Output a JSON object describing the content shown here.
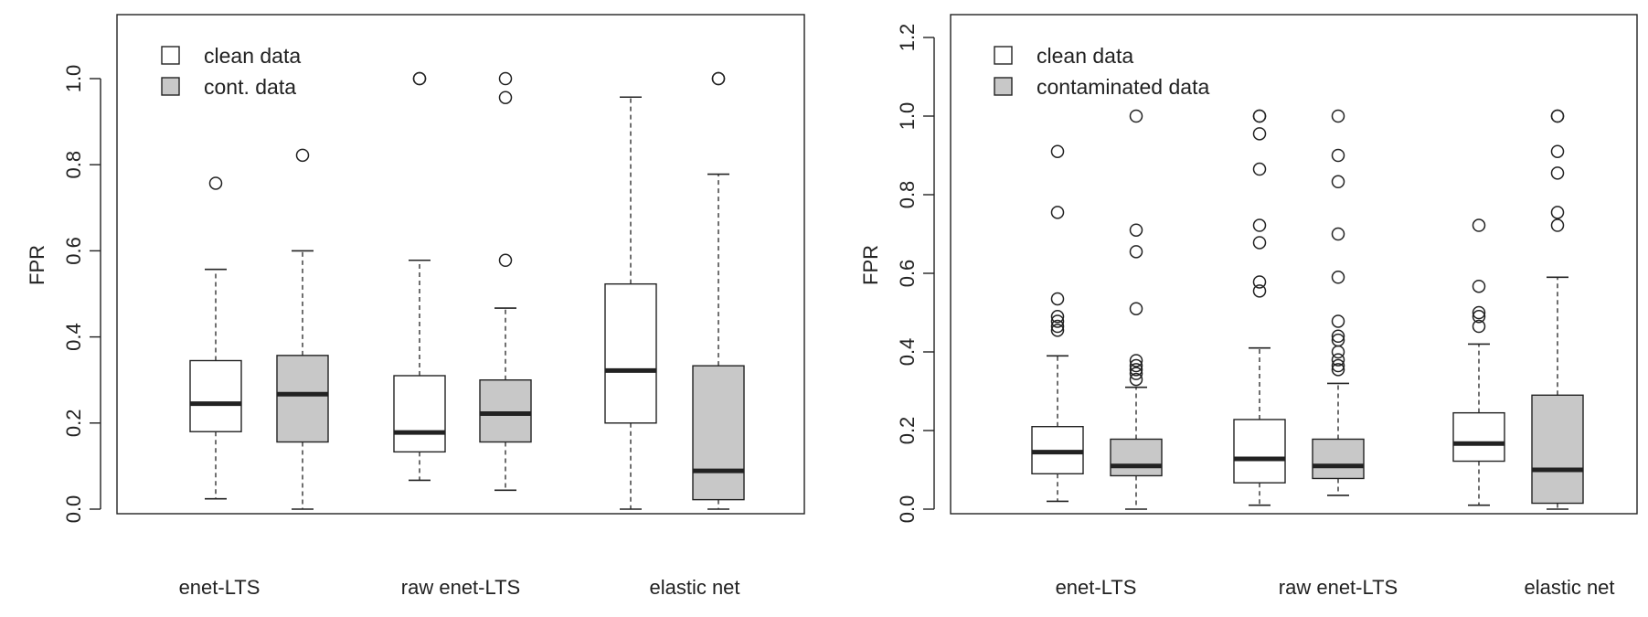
{
  "colors": {
    "clean": "#ffffff",
    "contaminated": "#c8c8c8",
    "ink": "#222222"
  },
  "chart_data": [
    {
      "type": "boxplot",
      "title": "",
      "xlabel": "",
      "ylabel": "FPR",
      "ylim": [
        0,
        1.1
      ],
      "yticks": [
        "0.0",
        "0.2",
        "0.4",
        "0.6",
        "0.8",
        "1.0"
      ],
      "categories": [
        "enet-LTS",
        "raw enet-LTS",
        "elastic net"
      ],
      "legend": {
        "position": "top-left",
        "entries": [
          "clean data",
          "cont. data"
        ]
      },
      "series": [
        {
          "name": "clean data",
          "boxes": [
            {
              "category": "enet-LTS",
              "whisker_low": 0.024,
              "q1": 0.18,
              "median": 0.245,
              "q3": 0.345,
              "whisker_high": 0.557,
              "outliers": [
                0.757
              ]
            },
            {
              "category": "raw enet-LTS",
              "whisker_low": 0.067,
              "q1": 0.133,
              "median": 0.178,
              "q3": 0.31,
              "whisker_high": 0.578,
              "outliers": [
                1.0,
                1.0
              ]
            },
            {
              "category": "elastic net",
              "whisker_low": 0.0,
              "q1": 0.2,
              "median": 0.322,
              "q3": 0.523,
              "whisker_high": 0.957,
              "outliers": []
            }
          ]
        },
        {
          "name": "cont. data",
          "boxes": [
            {
              "category": "enet-LTS",
              "whisker_low": 0.0,
              "q1": 0.156,
              "median": 0.267,
              "q3": 0.357,
              "whisker_high": 0.6,
              "outliers": [
                0.822
              ]
            },
            {
              "category": "raw enet-LTS",
              "whisker_low": 0.044,
              "q1": 0.156,
              "median": 0.222,
              "q3": 0.3,
              "whisker_high": 0.467,
              "outliers": [
                0.578,
                0.956,
                1.0
              ]
            },
            {
              "category": "elastic net",
              "whisker_low": 0.0,
              "q1": 0.022,
              "median": 0.089,
              "q3": 0.333,
              "whisker_high": 0.778,
              "outliers": [
                1.0,
                1.0
              ]
            }
          ]
        }
      ]
    },
    {
      "type": "boxplot",
      "title": "",
      "xlabel": "",
      "ylabel": "FPR",
      "ylim": [
        0,
        1.2
      ],
      "yticks": [
        "0.0",
        "0.2",
        "0.4",
        "0.6",
        "0.8",
        "1.0",
        "1.2"
      ],
      "categories": [
        "enet-LTS",
        "raw enet-LTS",
        "elastic net"
      ],
      "legend": {
        "position": "top-left",
        "entries": [
          "clean data",
          "contaminated data"
        ]
      },
      "series": [
        {
          "name": "clean data",
          "boxes": [
            {
              "category": "enet-LTS",
              "whisker_low": 0.02,
              "q1": 0.09,
              "median": 0.145,
              "q3": 0.21,
              "whisker_high": 0.39,
              "outliers": [
                0.455,
                0.465,
                0.478,
                0.49,
                0.535,
                0.755,
                0.91
              ]
            },
            {
              "category": "raw enet-LTS",
              "whisker_low": 0.01,
              "q1": 0.067,
              "median": 0.128,
              "q3": 0.228,
              "whisker_high": 0.41,
              "outliers": [
                0.555,
                0.578,
                0.678,
                0.722,
                0.865,
                0.955,
                1.0,
                1.0
              ]
            },
            {
              "category": "elastic net",
              "whisker_low": 0.01,
              "q1": 0.122,
              "median": 0.167,
              "q3": 0.245,
              "whisker_high": 0.42,
              "outliers": [
                0.465,
                0.49,
                0.5,
                0.567,
                0.722
              ]
            }
          ]
        },
        {
          "name": "contaminated data",
          "boxes": [
            {
              "category": "enet-LTS",
              "whisker_low": 0.0,
              "q1": 0.085,
              "median": 0.11,
              "q3": 0.178,
              "whisker_high": 0.31,
              "outliers": [
                0.33,
                0.345,
                0.355,
                0.365,
                0.378,
                0.51,
                0.655,
                0.71,
                1.0
              ]
            },
            {
              "category": "raw enet-LTS",
              "whisker_low": 0.035,
              "q1": 0.078,
              "median": 0.11,
              "q3": 0.178,
              "whisker_high": 0.32,
              "outliers": [
                0.355,
                0.365,
                0.38,
                0.4,
                0.43,
                0.44,
                0.478,
                0.59,
                0.7,
                0.833,
                0.9,
                1.0
              ]
            },
            {
              "category": "elastic net",
              "whisker_low": 0.0,
              "q1": 0.015,
              "median": 0.1,
              "q3": 0.29,
              "whisker_high": 0.59,
              "outliers": [
                0.722,
                0.755,
                0.855,
                0.91,
                1.0,
                1.0
              ]
            }
          ]
        }
      ]
    }
  ]
}
